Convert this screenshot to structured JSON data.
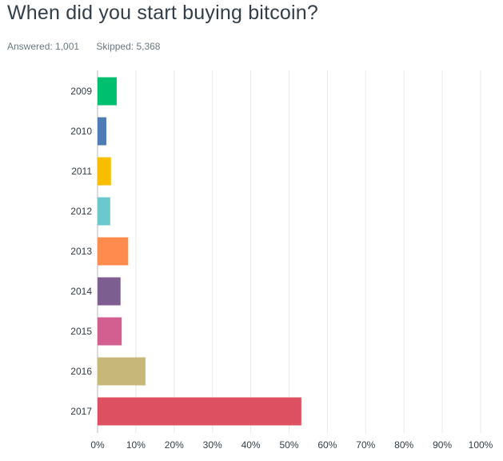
{
  "question": {
    "title": "When did you start buying bitcoin?",
    "answered": "Answered: 1,001",
    "skipped": "Skipped: 5,368"
  },
  "chart_data": {
    "type": "bar",
    "orientation": "horizontal",
    "title": "",
    "xlabel": "",
    "ylabel": "",
    "xlim": [
      0,
      100
    ],
    "x_ticks": [
      "0%",
      "10%",
      "20%",
      "30%",
      "40%",
      "50%",
      "60%",
      "70%",
      "80%",
      "90%",
      "100%"
    ],
    "grid": "vertical",
    "categories": [
      "2009",
      "2010",
      "2011",
      "2012",
      "2013",
      "2014",
      "2015",
      "2016",
      "2017"
    ],
    "values": [
      5.0,
      2.3,
      3.5,
      3.3,
      8.0,
      6.0,
      6.3,
      12.5,
      53.2
    ],
    "colors": [
      "#00bf6f",
      "#507cb6",
      "#f9be00",
      "#6bc8cd",
      "#ff8b4f",
      "#7d5e90",
      "#d25f90",
      "#c7b879",
      "#dc5061"
    ]
  }
}
